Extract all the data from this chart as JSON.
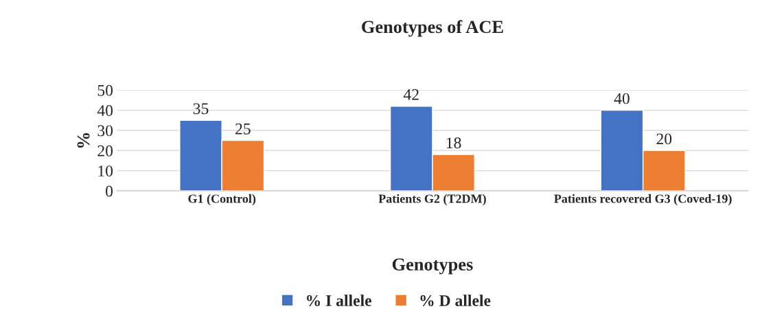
{
  "chart_data": {
    "type": "bar",
    "title": "Genotypes of ACE",
    "xlabel": "Genotypes",
    "ylabel": "%",
    "categories": [
      "G1 (Control)",
      "Patients G2 (T2DM)",
      "Patients recovered G3 (Coved-19)"
    ],
    "series": [
      {
        "name": "% I allele",
        "color": "#4472c4",
        "values": [
          35,
          42,
          40
        ]
      },
      {
        "name": "% D allele",
        "color": "#ed7d31",
        "values": [
          25,
          18,
          20
        ]
      }
    ],
    "ylim": [
      0,
      50
    ],
    "yticks": [
      0,
      10,
      20,
      30,
      40,
      50
    ],
    "grid": "y",
    "legend": "bottom",
    "data_labels": true
  }
}
